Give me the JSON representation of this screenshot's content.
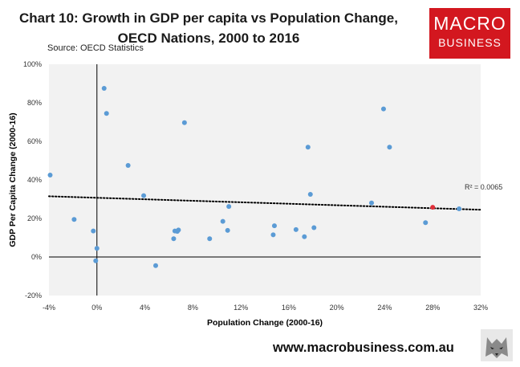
{
  "header": {
    "title_line1": "Chart 10: Growth in GDP per capita vs Population Change,",
    "title_line2": "OECD Nations, 2000 to 2016",
    "source": "Source: OECD Statistics"
  },
  "logo": {
    "line1": "MACRO",
    "line2": "BUSINESS",
    "color": "#d3171f"
  },
  "footer": {
    "url": "www.macrobusiness.com.au"
  },
  "chart_data": {
    "type": "scatter",
    "xlabel": "Population Change (2000-16)",
    "ylabel": "GDP Per Capita Change (2000-16)",
    "xlim": [
      -0.04,
      0.32
    ],
    "ylim": [
      -0.2,
      1.0
    ],
    "x_ticks": [
      -0.04,
      0,
      0.04,
      0.08,
      0.12,
      0.16,
      0.2,
      0.24,
      0.28,
      0.32
    ],
    "x_tick_labels": [
      "-4%",
      "0%",
      "4%",
      "8%",
      "12%",
      "16%",
      "20%",
      "24%",
      "28%",
      "32%"
    ],
    "y_ticks": [
      -0.2,
      0,
      0.2,
      0.4,
      0.6,
      0.8,
      1.0
    ],
    "y_tick_labels": [
      "-20%",
      "0%",
      "20%",
      "40%",
      "60%",
      "80%",
      "100%"
    ],
    "grid": false,
    "point_color": "#5b9bd5",
    "highlight_color": "#e0303a",
    "points": [
      {
        "x": -0.039,
        "y": 0.425
      },
      {
        "x": -0.019,
        "y": 0.195
      },
      {
        "x": -0.003,
        "y": 0.135
      },
      {
        "x": -0.001,
        "y": -0.02
      },
      {
        "x": 0.0,
        "y": 0.045
      },
      {
        "x": 0.006,
        "y": 0.875
      },
      {
        "x": 0.008,
        "y": 0.745
      },
      {
        "x": 0.026,
        "y": 0.475
      },
      {
        "x": 0.039,
        "y": 0.318
      },
      {
        "x": 0.049,
        "y": -0.045
      },
      {
        "x": 0.064,
        "y": 0.095
      },
      {
        "x": 0.065,
        "y": 0.135
      },
      {
        "x": 0.067,
        "y": 0.133
      },
      {
        "x": 0.068,
        "y": 0.14
      },
      {
        "x": 0.073,
        "y": 0.697
      },
      {
        "x": 0.094,
        "y": 0.095
      },
      {
        "x": 0.105,
        "y": 0.185
      },
      {
        "x": 0.109,
        "y": 0.138
      },
      {
        "x": 0.11,
        "y": 0.262
      },
      {
        "x": 0.147,
        "y": 0.115
      },
      {
        "x": 0.148,
        "y": 0.162
      },
      {
        "x": 0.166,
        "y": 0.142
      },
      {
        "x": 0.173,
        "y": 0.105
      },
      {
        "x": 0.176,
        "y": 0.57
      },
      {
        "x": 0.178,
        "y": 0.325
      },
      {
        "x": 0.181,
        "y": 0.152
      },
      {
        "x": 0.229,
        "y": 0.28
      },
      {
        "x": 0.239,
        "y": 0.768
      },
      {
        "x": 0.244,
        "y": 0.57
      },
      {
        "x": 0.274,
        "y": 0.178
      },
      {
        "x": 0.28,
        "y": 0.258,
        "highlight": true
      },
      {
        "x": 0.302,
        "y": 0.25
      }
    ],
    "trendline": {
      "type": "linear",
      "style": "dotted",
      "r2_label": "R² = 0.0065",
      "x": [
        -0.04,
        0.32
      ],
      "y": [
        0.315,
        0.245
      ]
    }
  }
}
